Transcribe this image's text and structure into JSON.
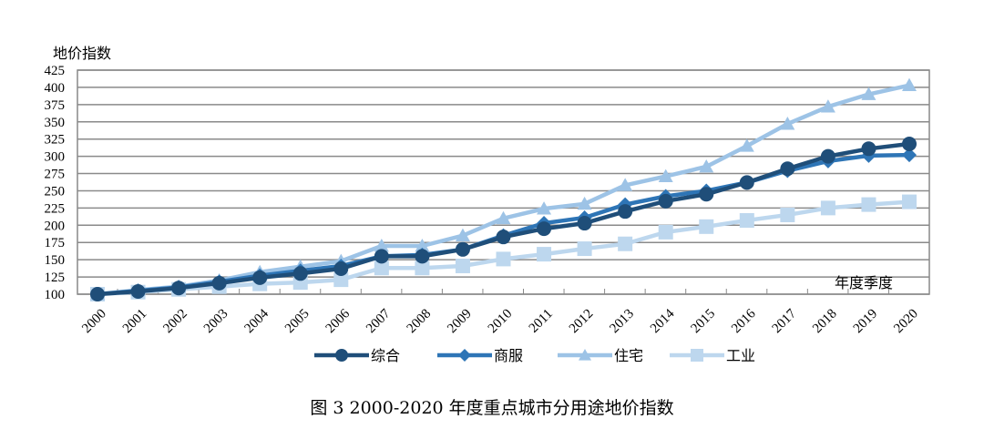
{
  "chart_data": {
    "type": "line",
    "title": "图 3 2000-2020 年度重点城市分用途地价指数",
    "ylabel": "地价指数",
    "xlabel": "年度季度",
    "ylim": [
      100,
      425
    ],
    "ytick_step": 25,
    "grid": true,
    "legend_placement": "bottom",
    "x": [
      "2000",
      "2001",
      "2002",
      "2003",
      "2004",
      "2005",
      "2006",
      "2007",
      "2008",
      "2009",
      "2010",
      "2011",
      "2012",
      "2013",
      "2014",
      "2015",
      "2016",
      "2017",
      "2018",
      "2019",
      "2020"
    ],
    "series": [
      {
        "name": "综合",
        "marker": "circle",
        "color": "#1f4e79",
        "values": [
          100,
          104,
          109,
          116,
          124,
          130,
          137,
          155,
          155,
          165,
          183,
          195,
          203,
          220,
          235,
          245,
          262,
          282,
          300,
          311,
          318
        ]
      },
      {
        "name": "商服",
        "marker": "diamond",
        "color": "#2e75b6",
        "values": [
          100,
          105,
          110,
          118,
          127,
          134,
          141,
          155,
          157,
          165,
          185,
          203,
          211,
          230,
          242,
          250,
          262,
          279,
          293,
          301,
          302
        ]
      },
      {
        "name": "住宅",
        "marker": "triangle",
        "color": "#9dc3e6",
        "values": [
          100,
          106,
          111,
          120,
          132,
          140,
          148,
          170,
          170,
          185,
          210,
          224,
          231,
          258,
          271,
          285,
          315,
          347,
          372,
          390,
          403
        ]
      },
      {
        "name": "工业",
        "marker": "square",
        "color": "#bdd7ee",
        "values": [
          100,
          103,
          107,
          111,
          115,
          117,
          121,
          138,
          138,
          141,
          151,
          158,
          166,
          173,
          190,
          198,
          207,
          215,
          225,
          230,
          234
        ]
      }
    ]
  }
}
